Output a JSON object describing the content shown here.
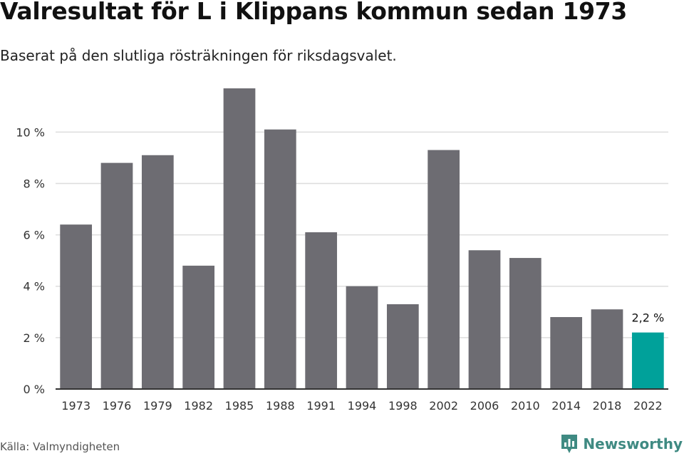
{
  "header": {
    "title": "Valresultat för L i Klippans kommun sedan 1973",
    "subtitle": "Baserat på den slutliga rösträkningen för riksdagsvalet."
  },
  "footer": {
    "source": "Källa: Valmyndigheten",
    "brand": "Newsworthy"
  },
  "colors": {
    "bar": "#6d6c72",
    "highlight": "#00a19a",
    "grid": "#dddddd",
    "axis": "#333333",
    "brand": "#3f8a82"
  },
  "icons": {
    "brand_logo": "newsworthy-logo-icon"
  },
  "chart_data": {
    "type": "bar",
    "categories": [
      "1973",
      "1976",
      "1979",
      "1982",
      "1985",
      "1988",
      "1991",
      "1994",
      "1998",
      "2002",
      "2006",
      "2010",
      "2014",
      "2018",
      "2022"
    ],
    "values": [
      6.4,
      8.8,
      9.1,
      4.8,
      11.7,
      10.1,
      6.1,
      4.0,
      3.3,
      9.3,
      5.4,
      5.1,
      2.8,
      3.1,
      2.2
    ],
    "highlight_index": 14,
    "data_labels": [
      {
        "index": 14,
        "text": "2,2 %"
      }
    ],
    "yticks": [
      0,
      2,
      4,
      6,
      8,
      10
    ],
    "ytick_labels": [
      "0 %",
      "2 %",
      "4 %",
      "6 %",
      "8 %",
      "10 %"
    ],
    "ylim": [
      0,
      11.7
    ],
    "grid": true,
    "legend": "none"
  }
}
